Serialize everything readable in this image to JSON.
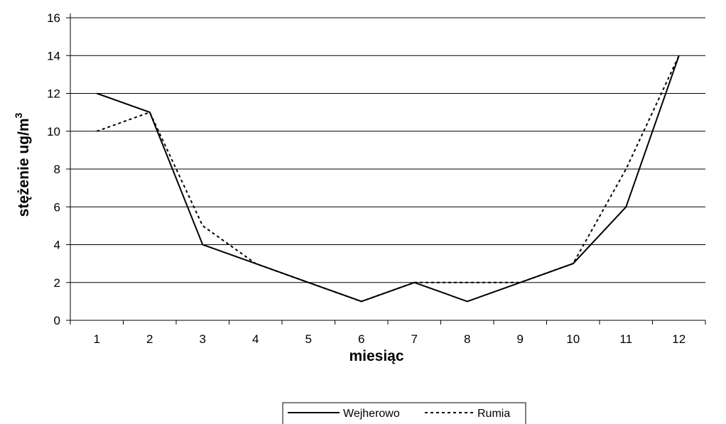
{
  "chart_data": {
    "type": "line",
    "categories": [
      "1",
      "2",
      "3",
      "4",
      "5",
      "6",
      "7",
      "8",
      "9",
      "10",
      "11",
      "12"
    ],
    "series": [
      {
        "name": "Wejherowo",
        "values": [
          12,
          11,
          4,
          3,
          2,
          1,
          2,
          1,
          2,
          3,
          6,
          14
        ],
        "style": "solid"
      },
      {
        "name": "Rumia",
        "values": [
          10,
          11,
          5,
          3,
          2,
          1,
          2,
          2,
          2,
          3,
          8,
          14
        ],
        "style": "dashed"
      }
    ],
    "xlabel": "miesiąc",
    "ylabel_main": "stężenie ug/m",
    "ylabel_sup": "3",
    "ylim": [
      0,
      16
    ],
    "yticks": [
      "0",
      "2",
      "4",
      "6",
      "8",
      "10",
      "12",
      "14",
      "16"
    ],
    "grid": "horizontal",
    "legend_position": "bottom",
    "colors": {
      "line": "#000000",
      "grid": "#000000",
      "background": "#ffffff"
    }
  }
}
